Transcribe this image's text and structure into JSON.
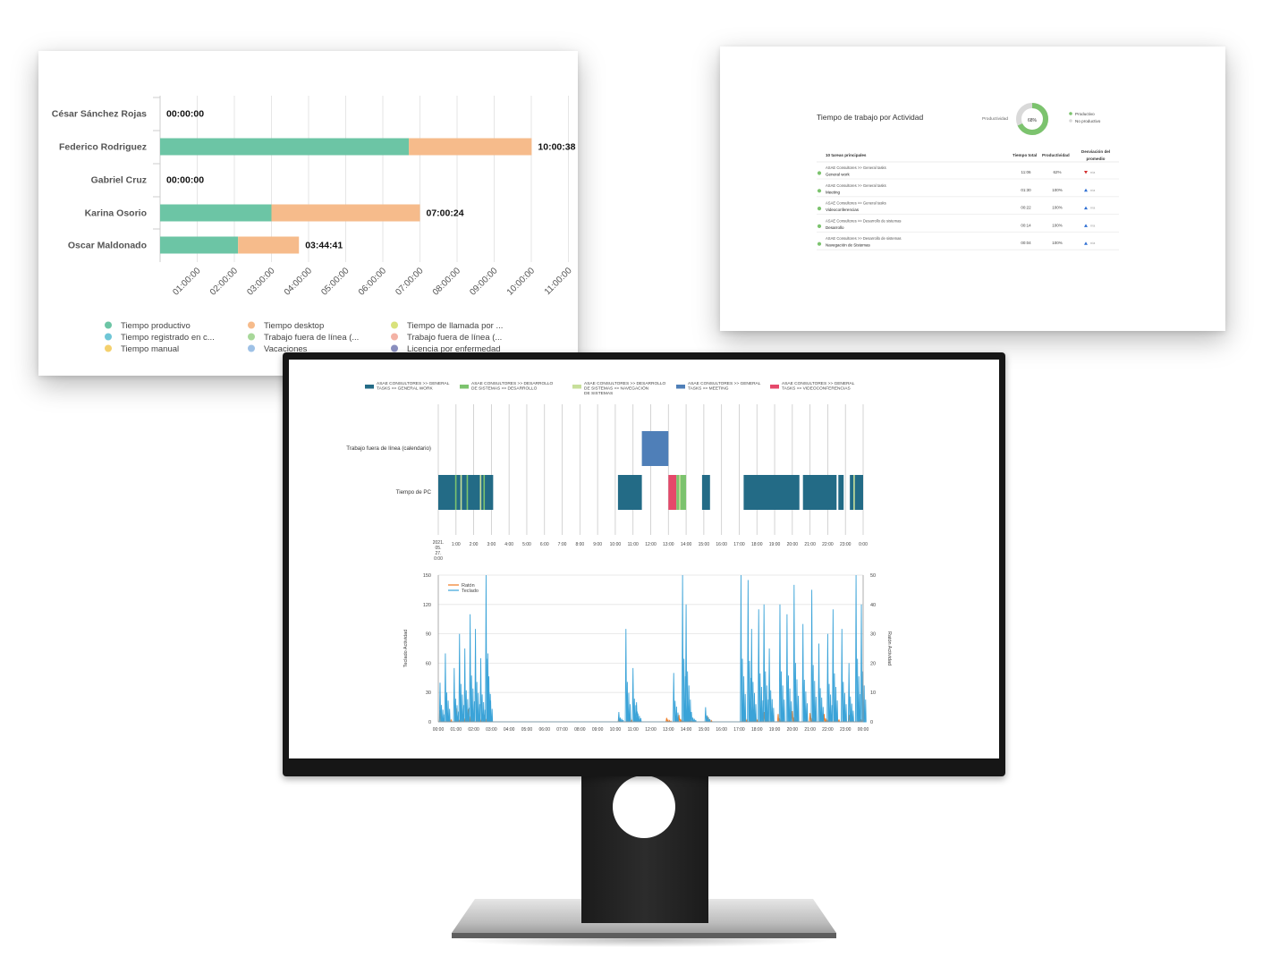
{
  "employees_chart": {
    "names": [
      "César Sánchez Rojas",
      "Federico Rodriguez",
      "Gabriel Cruz",
      "Karina Osorio",
      "Oscar Maldonado"
    ],
    "totals": [
      "00:00:00",
      "10:00:38",
      "00:00:00",
      "07:00:24",
      "03:44:41"
    ],
    "x_ticks": [
      "01:00:00",
      "02:00:00",
      "03:00:00",
      "04:00:00",
      "05:00:00",
      "06:00:00",
      "07:00:00",
      "08:00:00",
      "09:00:00",
      "10:00:00",
      "11:00:00"
    ],
    "legend": [
      {
        "label": "Tiempo productivo",
        "color": "#6cc5a5"
      },
      {
        "label": "Tiempo desktop",
        "color": "#f6bb8b"
      },
      {
        "label": "Tiempo de llamada por ...",
        "color": "#d9e27b"
      },
      {
        "label": "Tiempo registrado en c...",
        "color": "#6fc6d6"
      },
      {
        "label": "Trabajo fuera de línea (...",
        "color": "#a8d89a"
      },
      {
        "label": "Trabajo fuera de línea (...",
        "color": "#f3b2a5"
      },
      {
        "label": "Tiempo manual",
        "color": "#f4d06d"
      },
      {
        "label": "Vacaciones",
        "color": "#9ec1e6"
      },
      {
        "label": "Licencia por enfermedad",
        "color": "#8a8fbf"
      }
    ]
  },
  "chart_data": [
    {
      "type": "bar",
      "stacked": true,
      "orientation": "horizontal",
      "categories": [
        "César Sánchez Rojas",
        "Federico Rodriguez",
        "Gabriel Cruz",
        "Karina Osorio",
        "Oscar Maldonado"
      ],
      "series": [
        {
          "name": "Tiempo productivo",
          "values": [
            0,
            6.7,
            0,
            3.0,
            2.1
          ]
        },
        {
          "name": "Tiempo desktop",
          "values": [
            0,
            3.31,
            0,
            4.0,
            1.64
          ]
        }
      ],
      "data_labels": [
        "00:00:00",
        "10:00:38",
        "00:00:00",
        "07:00:24",
        "03:44:41"
      ],
      "xlim": [
        0,
        11
      ],
      "grid": true,
      "legend_position": "bottom"
    },
    {
      "type": "pie",
      "donut": true,
      "title": "Productividad",
      "center_label": "68%",
      "series": [
        {
          "name": "Productivo",
          "values": [
            68
          ]
        },
        {
          "name": "No productivo",
          "values": [
            32
          ]
        }
      ]
    },
    {
      "type": "bar",
      "subtype": "timeline",
      "rows": [
        "Trabajo fuera de línea (calendario)",
        "Tiempo de PC"
      ],
      "xlim": [
        0,
        24
      ],
      "x_ticks": [
        "2021-05-27 0:00",
        "1:00",
        "2:00",
        "3:00",
        "4:00",
        "5:00",
        "6:00",
        "7:00",
        "8:00",
        "9:00",
        "10:00",
        "11:00",
        "12:00",
        "13:00",
        "14:00",
        "15:00",
        "16:00",
        "17:00",
        "18:00",
        "19:00",
        "20:00",
        "21:00",
        "22:00",
        "23:00",
        "0:00"
      ],
      "segments": [
        {
          "row": "Trabajo fuera de línea (calendario)",
          "start": 11.5,
          "end": 13.0,
          "series": "ASAE CONSULTORES >> GENERAL TASKS >> MEETING"
        },
        {
          "row": "Tiempo de PC",
          "start": 0.0,
          "end": 3.1,
          "series": "ASAE CONSULTORES >> GENERAL TASKS >> GENERAL WORK"
        },
        {
          "row": "Tiempo de PC",
          "start": 10.15,
          "end": 11.5,
          "series": "ASAE CONSULTORES >> GENERAL TASKS >> GENERAL WORK"
        },
        {
          "row": "Tiempo de PC",
          "start": 13.0,
          "end": 13.45,
          "series": "ASAE CONSULTORES >> GENERAL TASKS >> VIDEOCONFERENCIAS"
        },
        {
          "row": "Tiempo de PC",
          "start": 13.45,
          "end": 14.0,
          "series": "ASAE CONSULTORES >> DESARROLLO DE SISTEMAS >> DESARROLLO"
        },
        {
          "row": "Tiempo de PC",
          "start": 14.9,
          "end": 15.35,
          "series": "ASAE CONSULTORES >> GENERAL TASKS >> GENERAL WORK"
        },
        {
          "row": "Tiempo de PC",
          "start": 17.25,
          "end": 20.4,
          "series": "ASAE CONSULTORES >> GENERAL TASKS >> GENERAL WORK"
        },
        {
          "row": "Tiempo de PC",
          "start": 20.6,
          "end": 22.5,
          "series": "ASAE CONSULTORES >> GENERAL TASKS >> GENERAL WORK"
        },
        {
          "row": "Tiempo de PC",
          "start": 22.6,
          "end": 22.9,
          "series": "ASAE CONSULTORES >> GENERAL TASKS >> GENERAL WORK"
        },
        {
          "row": "Tiempo de PC",
          "start": 23.25,
          "end": 24.0,
          "series": "ASAE CONSULTORES >> GENERAL TASKS >> GENERAL WORK"
        }
      ]
    },
    {
      "type": "line",
      "xlabel": "",
      "ylabel": "Teclado Actividad",
      "y2label": "Ratón Actividad",
      "ylim": [
        0,
        150
      ],
      "y2lim": [
        0,
        50
      ],
      "yticks": [
        0,
        30,
        60,
        90,
        120,
        150
      ],
      "y2ticks": [
        0,
        10,
        20,
        30,
        40,
        50
      ],
      "x_ticks": [
        "00:00",
        "01:00",
        "02:00",
        "03:00",
        "04:00",
        "05:00",
        "06:00",
        "07:00",
        "08:00",
        "09:00",
        "10:00",
        "11:00",
        "12:00",
        "13:00",
        "14:00",
        "15:00",
        "16:00",
        "17:00",
        "18:00",
        "19:00",
        "20:00",
        "21:00",
        "22:00",
        "23:00",
        "00:00"
      ],
      "xlim": [
        0,
        24
      ],
      "series": [
        {
          "name": "Ratón",
          "x": [
            0.1,
            0.5,
            1.0,
            1.4,
            1.7,
            2.2,
            2.6,
            2.8,
            10.2,
            10.7,
            11.1,
            12.9,
            13.6,
            14.1,
            15.2,
            17.2,
            17.8,
            18.4,
            19.2,
            20.0,
            21.0,
            21.8,
            22.4,
            23.2,
            23.8
          ],
          "y": [
            12,
            9,
            14,
            8,
            13,
            11,
            7,
            10,
            3,
            11,
            9,
            4,
            7,
            5,
            6,
            12,
            13,
            10,
            8,
            11,
            9,
            8,
            12,
            7,
            6
          ]
        },
        {
          "name": "Teclado",
          "x": [
            0.1,
            0.4,
            0.9,
            1.2,
            1.5,
            1.8,
            2.1,
            2.4,
            2.7,
            2.8,
            10.2,
            10.6,
            11.0,
            11.2,
            13.3,
            13.8,
            14.0,
            14.3,
            15.1,
            17.1,
            17.5,
            17.7,
            18.1,
            18.4,
            18.7,
            19.3,
            19.7,
            20.1,
            20.6,
            21.1,
            21.5,
            22.0,
            22.3,
            22.8,
            23.2,
            23.6,
            23.9
          ],
          "y": [
            40,
            70,
            55,
            90,
            75,
            110,
            95,
            65,
            150,
            70,
            10,
            95,
            55,
            20,
            50,
            150,
            120,
            10,
            15,
            150,
            145,
            95,
            115,
            120,
            75,
            120,
            110,
            140,
            100,
            135,
            80,
            90,
            115,
            95,
            60,
            150,
            120
          ]
        }
      ]
    }
  ],
  "activity_panel": {
    "title": "Tiempo de trabajo por Actividad",
    "productivity_label": "Productividad",
    "donut_value": "68%",
    "legend_productive": "Productivo",
    "legend_non_productive": "No productivo",
    "colors": {
      "productive": "#7cc36e",
      "non_productive": "#d9d9d9"
    },
    "table": {
      "headers": [
        "10 tareas principales",
        "Tiempo total",
        "Productividad",
        "Desviación del",
        "promedio"
      ],
      "rows": [
        {
          "path": "ASAE Consultores >> General tasks",
          "task": "General work",
          "time": "11:06",
          "prod": "62%",
          "dev": "n/a",
          "dev_dir": "down"
        },
        {
          "path": "ASAE Consultores >> General tasks",
          "task": "Meeting",
          "time": "01:30",
          "prod": "100%",
          "dev": "n/a",
          "dev_dir": "up"
        },
        {
          "path": "ASAE Consultores >> General tasks",
          "task": "Videoconferencias",
          "time": "00:22",
          "prod": "100%",
          "dev": "n/a",
          "dev_dir": "up"
        },
        {
          "path": "ASAE Consultores >> Desarrollo de sistemas",
          "task": "Desarrollo",
          "time": "00:14",
          "prod": "100%",
          "dev": "n/a",
          "dev_dir": "up"
        },
        {
          "path": "ASAE Consultores >> Desarrollo de sistemas",
          "task": "Navegación de Sistemas",
          "time": "00:04",
          "prod": "100%",
          "dev": "n/a",
          "dev_dir": "up"
        }
      ]
    }
  },
  "monitor_chart": {
    "legend": [
      {
        "line1": "ASAE CONSULTORES >> GENERAL",
        "line2": "TASKS >> GENERAL WORK",
        "line3": "",
        "color": "#236b86"
      },
      {
        "line1": "ASAE CONSULTORES >> DESARROLLO",
        "line2": "DE SISTEMAS >> DESARROLLO",
        "line3": "",
        "color": "#7cc36e"
      },
      {
        "line1": "ASAE CONSULTORES >> DESARROLLO",
        "line2": "DE SISTEMAS >> NAVEGACIÓN",
        "line3": "DE SISTEMAS",
        "color": "#c7df9a"
      },
      {
        "line1": "ASAE CONSULTORES >> GENERAL",
        "line2": "TASKS >> MEETING",
        "line3": "",
        "color": "#4f7fb8"
      },
      {
        "line1": "ASAE CONSULTORES >> GENERAL",
        "line2": "TASKS >> VIDEOCONFERENCIAS",
        "line3": "",
        "color": "#e5486a"
      }
    ],
    "row_labels": [
      "Trabajo fuera de línea (calendario)",
      "Tiempo de PC"
    ],
    "first_tick": [
      "2021.",
      "05.",
      "27.",
      "0:00"
    ],
    "timeline_ticks": [
      "1:00",
      "2:00",
      "3:00",
      "4:00",
      "5:00",
      "6:00",
      "7:00",
      "8:00",
      "9:00",
      "10:00",
      "11:00",
      "12:00",
      "13:00",
      "14:00",
      "15:00",
      "16:00",
      "17:00",
      "18:00",
      "19:00",
      "20:00",
      "21:00",
      "22:00",
      "23:00",
      "0:00"
    ],
    "line_legend": [
      "Ratón",
      "Teclado"
    ],
    "line_colors": {
      "mouse": "#f07a22",
      "keyboard": "#3aa3d8"
    },
    "y_label": "Teclado Actividad",
    "y2_label": "Ratón Actividad"
  }
}
